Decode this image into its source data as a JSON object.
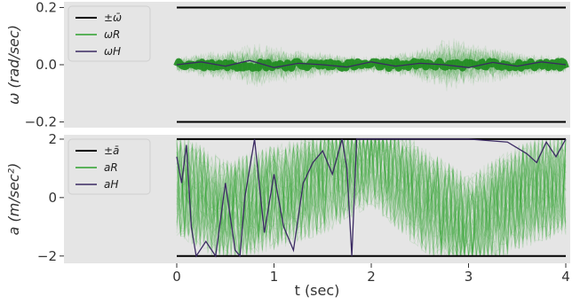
{
  "chart_data": [
    {
      "type": "line",
      "ylabel": "ω (rad/sec)",
      "xlim": [
        0,
        4
      ],
      "ylim": [
        -0.22,
        0.22
      ],
      "grid": false,
      "legend_position": "top-left",
      "yticks": [
        {
          "value": 0.2,
          "label": "0.2"
        },
        {
          "value": 0.0,
          "label": "0.0"
        },
        {
          "value": -0.2,
          "label": "−0.2"
        }
      ],
      "legend": [
        {
          "label": "±ω̄",
          "color": "#000000"
        },
        {
          "label": "ωR",
          "color": "#2ca02c"
        },
        {
          "label": "ωH",
          "color": "#3b2a63"
        }
      ],
      "series": [
        {
          "name": "+ω̄",
          "x": [
            0,
            4
          ],
          "values": [
            0.2,
            0.2
          ],
          "color": "#000000"
        },
        {
          "name": "−ω̄",
          "x": [
            0,
            4
          ],
          "values": [
            -0.2,
            -0.2
          ],
          "color": "#000000"
        },
        {
          "name": "ωR",
          "band_x": [
            0,
            0.4,
            0.8,
            1.2,
            1.6,
            2.0,
            2.4,
            2.8,
            3.2,
            3.6,
            4.0
          ],
          "band_spread": [
            0.03,
            0.05,
            0.08,
            0.06,
            0.04,
            0.03,
            0.05,
            0.1,
            0.07,
            0.04,
            0.03
          ],
          "color": "#2ca02c"
        },
        {
          "name": "ωH",
          "x": [
            0,
            0.25,
            0.5,
            0.75,
            1.0,
            1.25,
            1.5,
            1.75,
            2.0,
            2.25,
            2.5,
            2.75,
            3.0,
            3.25,
            3.5,
            3.75,
            4.0
          ],
          "values": [
            0.0,
            0.01,
            -0.005,
            0.015,
            -0.01,
            0.005,
            0.0,
            -0.008,
            0.01,
            -0.005,
            0.005,
            0.0,
            -0.01,
            0.008,
            -0.005,
            0.01,
            0.0
          ],
          "color": "#3b2a63"
        }
      ]
    },
    {
      "type": "line",
      "ylabel": "a (m/sec²)",
      "xlabel": "t (sec)",
      "xlim": [
        0,
        4
      ],
      "ylim": [
        -2.25,
        2.15
      ],
      "grid": false,
      "legend_position": "top-left",
      "yticks": [
        {
          "value": 2,
          "label": "2"
        },
        {
          "value": 0,
          "label": "0"
        },
        {
          "value": -2,
          "label": "−2"
        }
      ],
      "xticks": [
        {
          "value": 0,
          "label": "0"
        },
        {
          "value": 1,
          "label": "1"
        },
        {
          "value": 2,
          "label": "2"
        },
        {
          "value": 3,
          "label": "3"
        },
        {
          "value": 4,
          "label": "4"
        }
      ],
      "legend": [
        {
          "label": "±ā",
          "color": "#000000"
        },
        {
          "label": "aR",
          "color": "#2ca02c"
        },
        {
          "label": "aH",
          "color": "#3b2a63"
        }
      ],
      "series": [
        {
          "name": "+ā",
          "x": [
            0,
            4
          ],
          "values": [
            2,
            2
          ],
          "color": "#000000"
        },
        {
          "name": "−ā",
          "x": [
            0,
            4
          ],
          "values": [
            -2,
            -2
          ],
          "color": "#000000"
        },
        {
          "name": "aR",
          "band_x": [
            0,
            0.5,
            1.0,
            1.5,
            2.0,
            2.5,
            3.0,
            3.5,
            4.0
          ],
          "band_center": [
            0.5,
            -0.5,
            0.0,
            0.5,
            1.5,
            0.0,
            -1.0,
            0.0,
            0.5
          ],
          "color": "#2ca02c"
        },
        {
          "name": "aH",
          "x": [
            0,
            0.05,
            0.1,
            0.15,
            0.2,
            0.3,
            0.4,
            0.5,
            0.6,
            0.65,
            0.7,
            0.8,
            0.9,
            1.0,
            1.1,
            1.2,
            1.3,
            1.4,
            1.5,
            1.6,
            1.7,
            1.75,
            1.8,
            1.85,
            1.9,
            2.0,
            2.5,
            3.0,
            3.4,
            3.5,
            3.6,
            3.7,
            3.8,
            3.9,
            4.0
          ],
          "values": [
            1.4,
            0.5,
            1.8,
            -1.0,
            -2.0,
            -1.5,
            -2.0,
            0.5,
            -1.8,
            -2.0,
            0.0,
            2.0,
            -1.2,
            0.8,
            -1.0,
            -1.8,
            0.5,
            1.2,
            1.6,
            0.8,
            2.0,
            1.0,
            -2.0,
            2.0,
            2.0,
            2.0,
            2.0,
            2.0,
            1.9,
            1.7,
            1.5,
            1.2,
            1.9,
            1.4,
            2.0
          ],
          "color": "#3b2a63"
        }
      ]
    }
  ]
}
